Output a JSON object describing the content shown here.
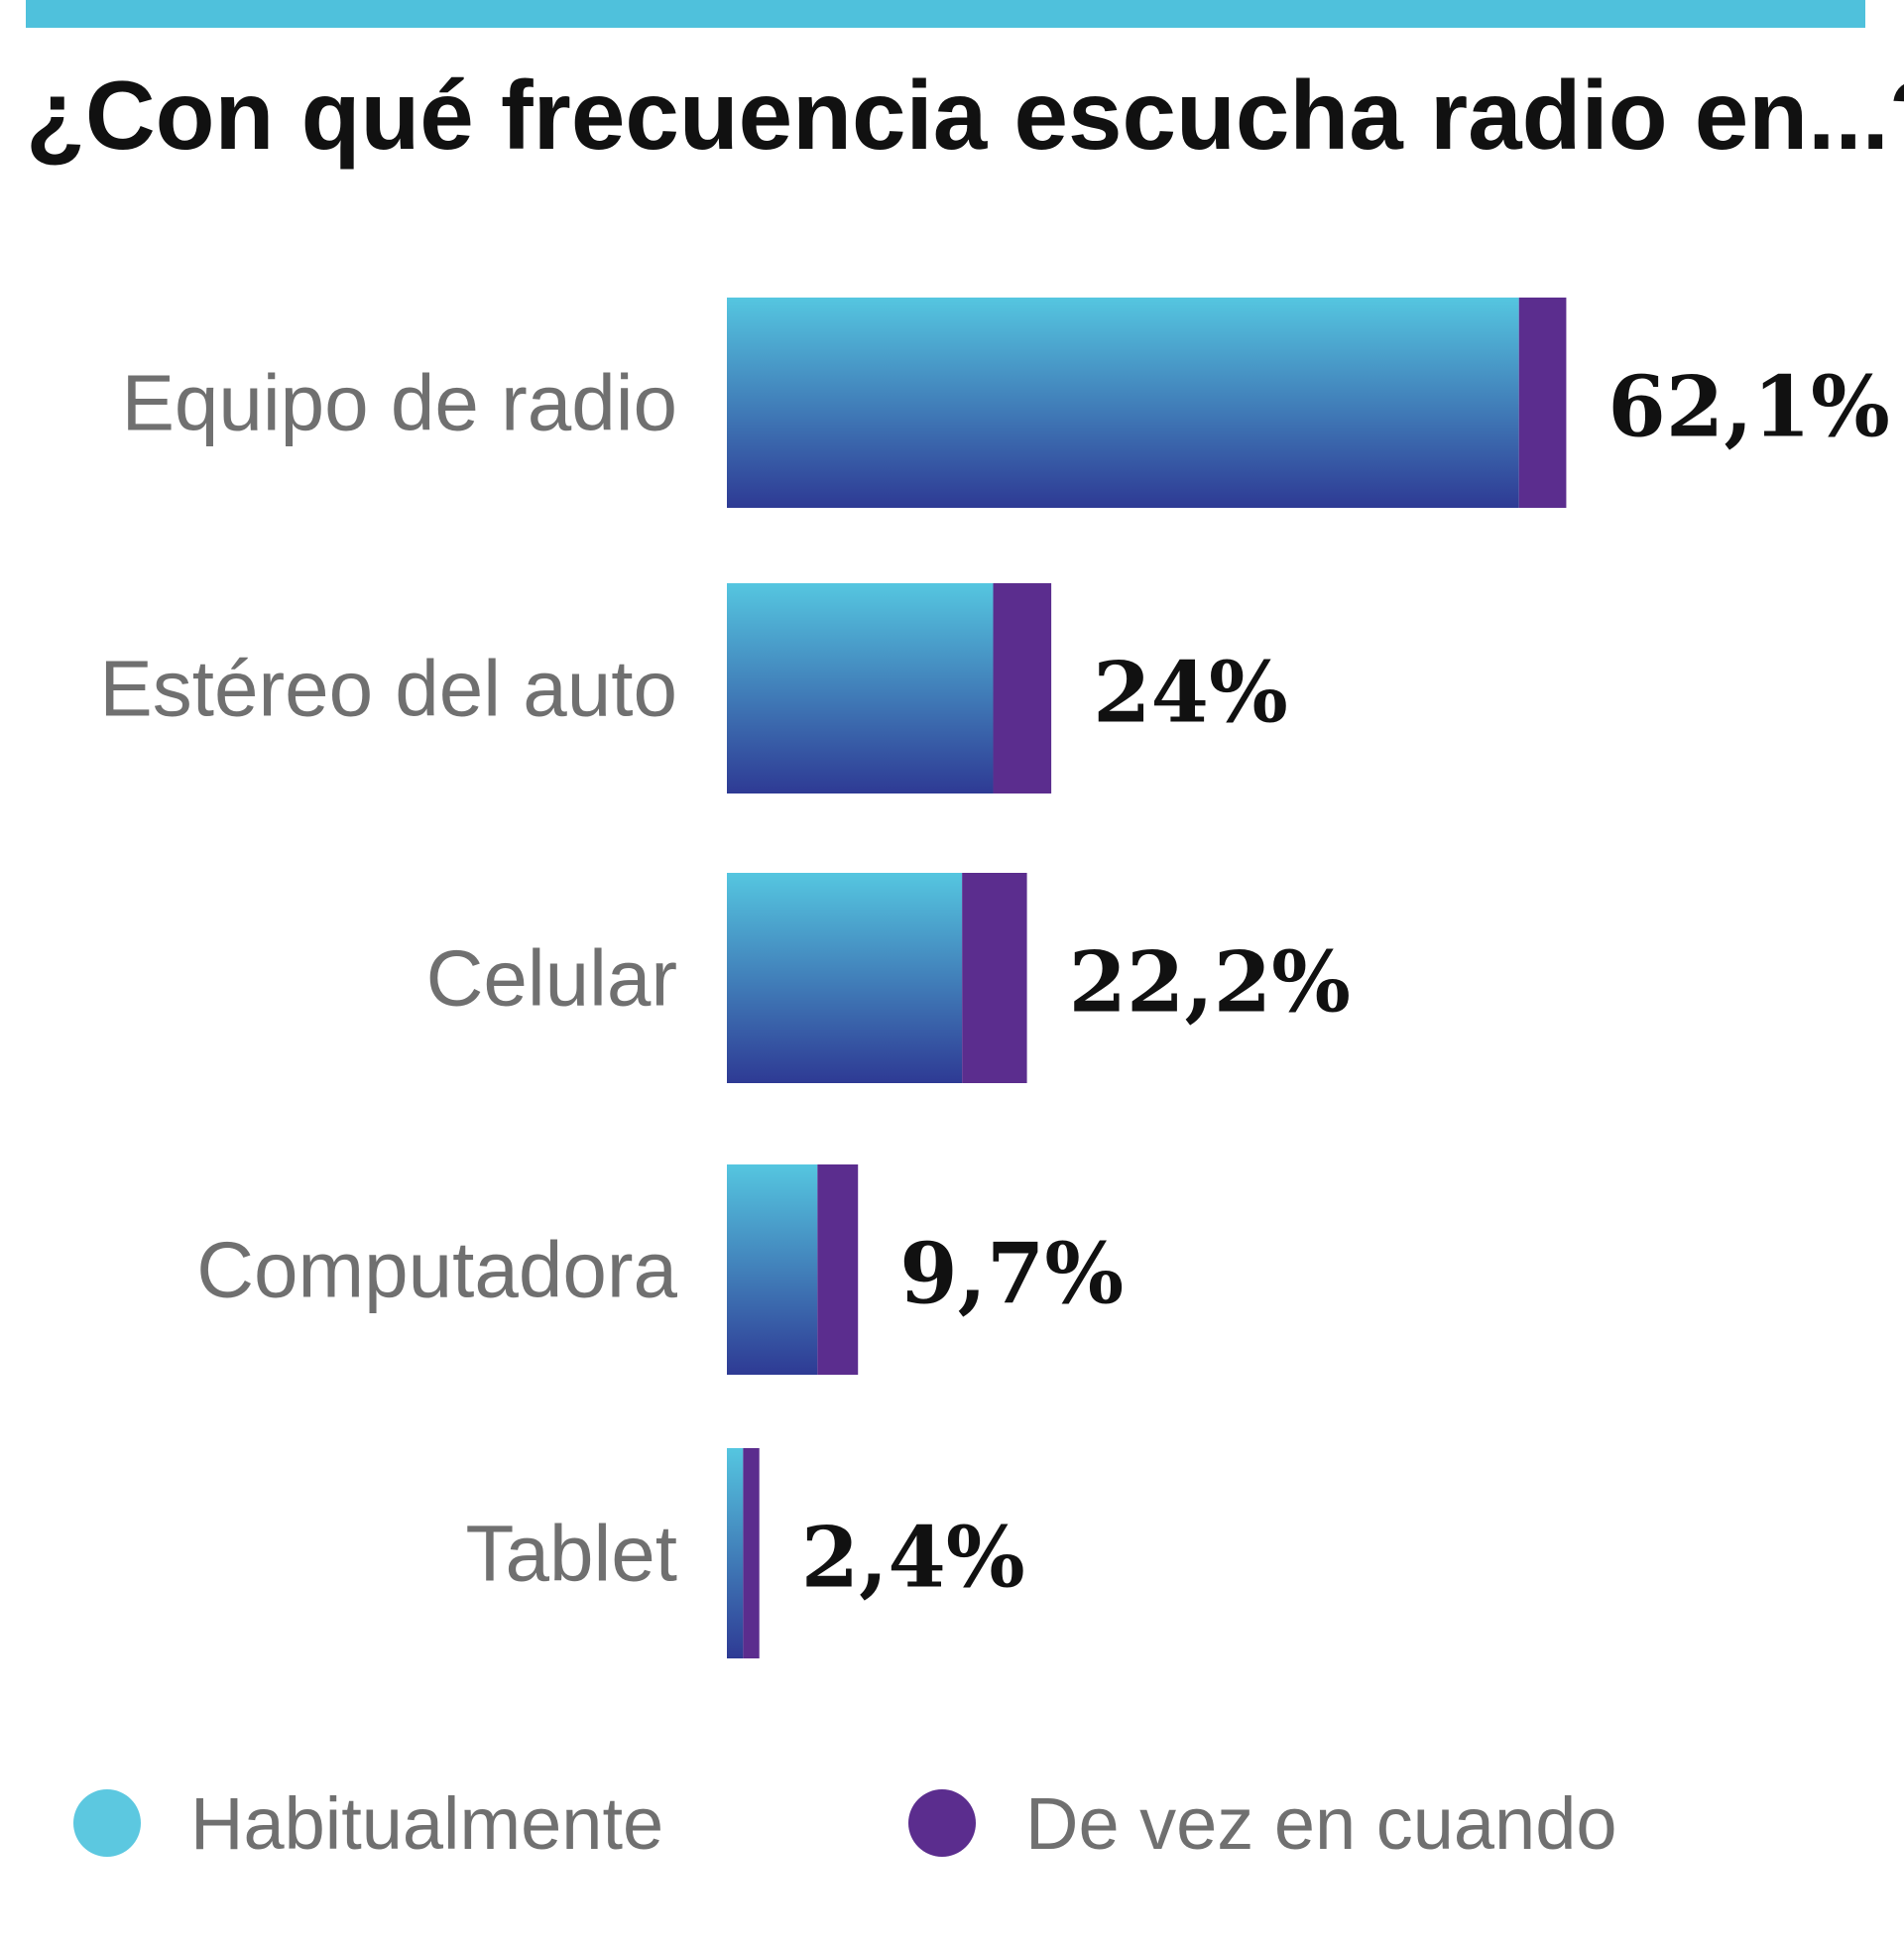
{
  "title": "¿Con qué frecuencia escucha radio en...?",
  "colors": {
    "rule": "#4fc1dc",
    "habitual_top": "#55c6e0",
    "habitual_bottom": "#2e3a94",
    "occasional": "#5b2d8e",
    "legend_habitual": "#5cc8e0",
    "legend_occasional": "#5b2d8e"
  },
  "legend": [
    {
      "label": "Habitualmente",
      "color": "#5cc8e0"
    },
    {
      "label": "De vez en cuando",
      "color": "#5b2d8e"
    }
  ],
  "chart_data": {
    "type": "bar",
    "orientation": "horizontal",
    "stacked": true,
    "title": "¿Con qué frecuencia escucha radio en...?",
    "categories": [
      "Equipo de radio",
      "Estéreo del auto",
      "Celular",
      "Computadora",
      "Tablet"
    ],
    "series": [
      {
        "name": "Habitualmente",
        "values": [
          58.6,
          19.7,
          17.4,
          6.7,
          1.2
        ]
      },
      {
        "name": "De vez en cuando",
        "values": [
          3.5,
          4.3,
          4.8,
          3.0,
          1.2
        ]
      }
    ],
    "totals": [
      "62,1%",
      "24%",
      "22,2%",
      "9,7%",
      "2,4%"
    ],
    "legend_position": "bottom"
  }
}
